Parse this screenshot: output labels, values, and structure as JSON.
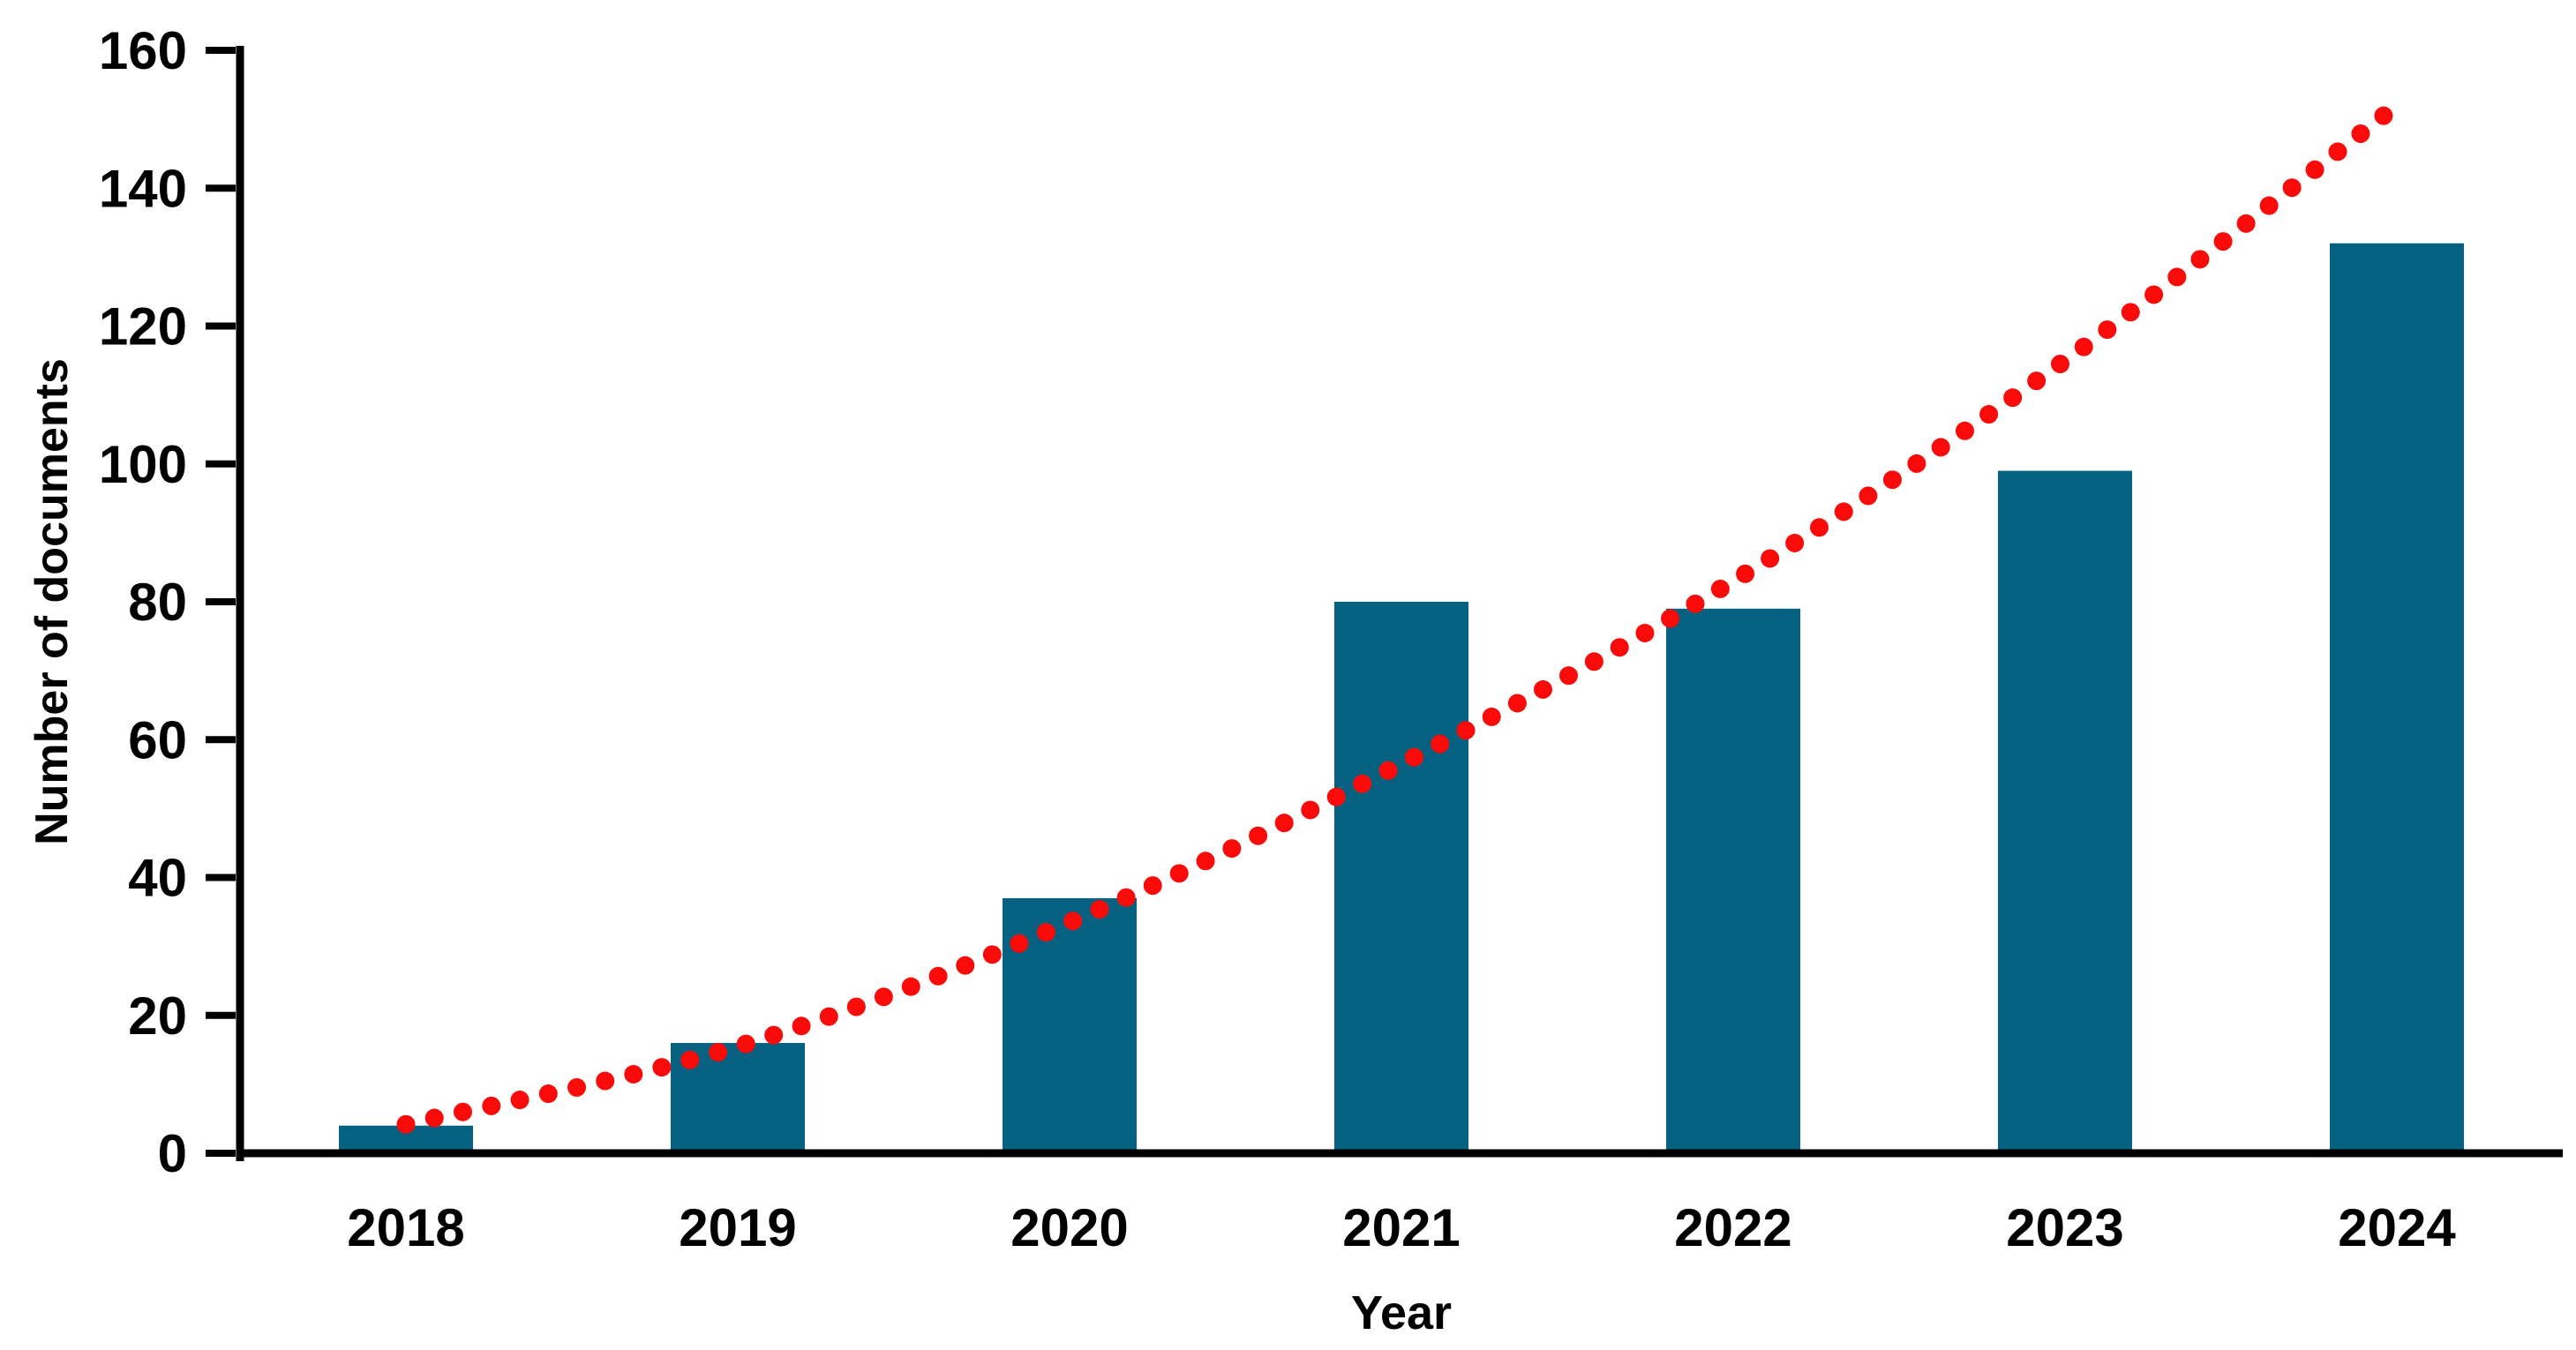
{
  "chart_data": {
    "type": "bar",
    "title": "",
    "xlabel": "Year",
    "ylabel": "Number of documents",
    "categories": [
      "2018",
      "2019",
      "2020",
      "2021",
      "2022",
      "2023",
      "2024"
    ],
    "values": [
      4,
      16,
      37,
      80,
      79,
      99,
      132
    ],
    "ylim": [
      0,
      160
    ],
    "ytick_step": 20,
    "ytick_labels": [
      "0",
      "20",
      "40",
      "60",
      "80",
      "100",
      "120",
      "140",
      "160"
    ],
    "grid": false,
    "legend_position": "none",
    "bar_color": "#066080",
    "axis_color": "#000000",
    "label_color": "#000000",
    "trendline": {
      "style": "dotted",
      "color": "#FB0A0A",
      "values_by_year": [
        4.2,
        15.5,
        33.5,
        56.5,
        83,
        115,
        152
      ]
    }
  }
}
